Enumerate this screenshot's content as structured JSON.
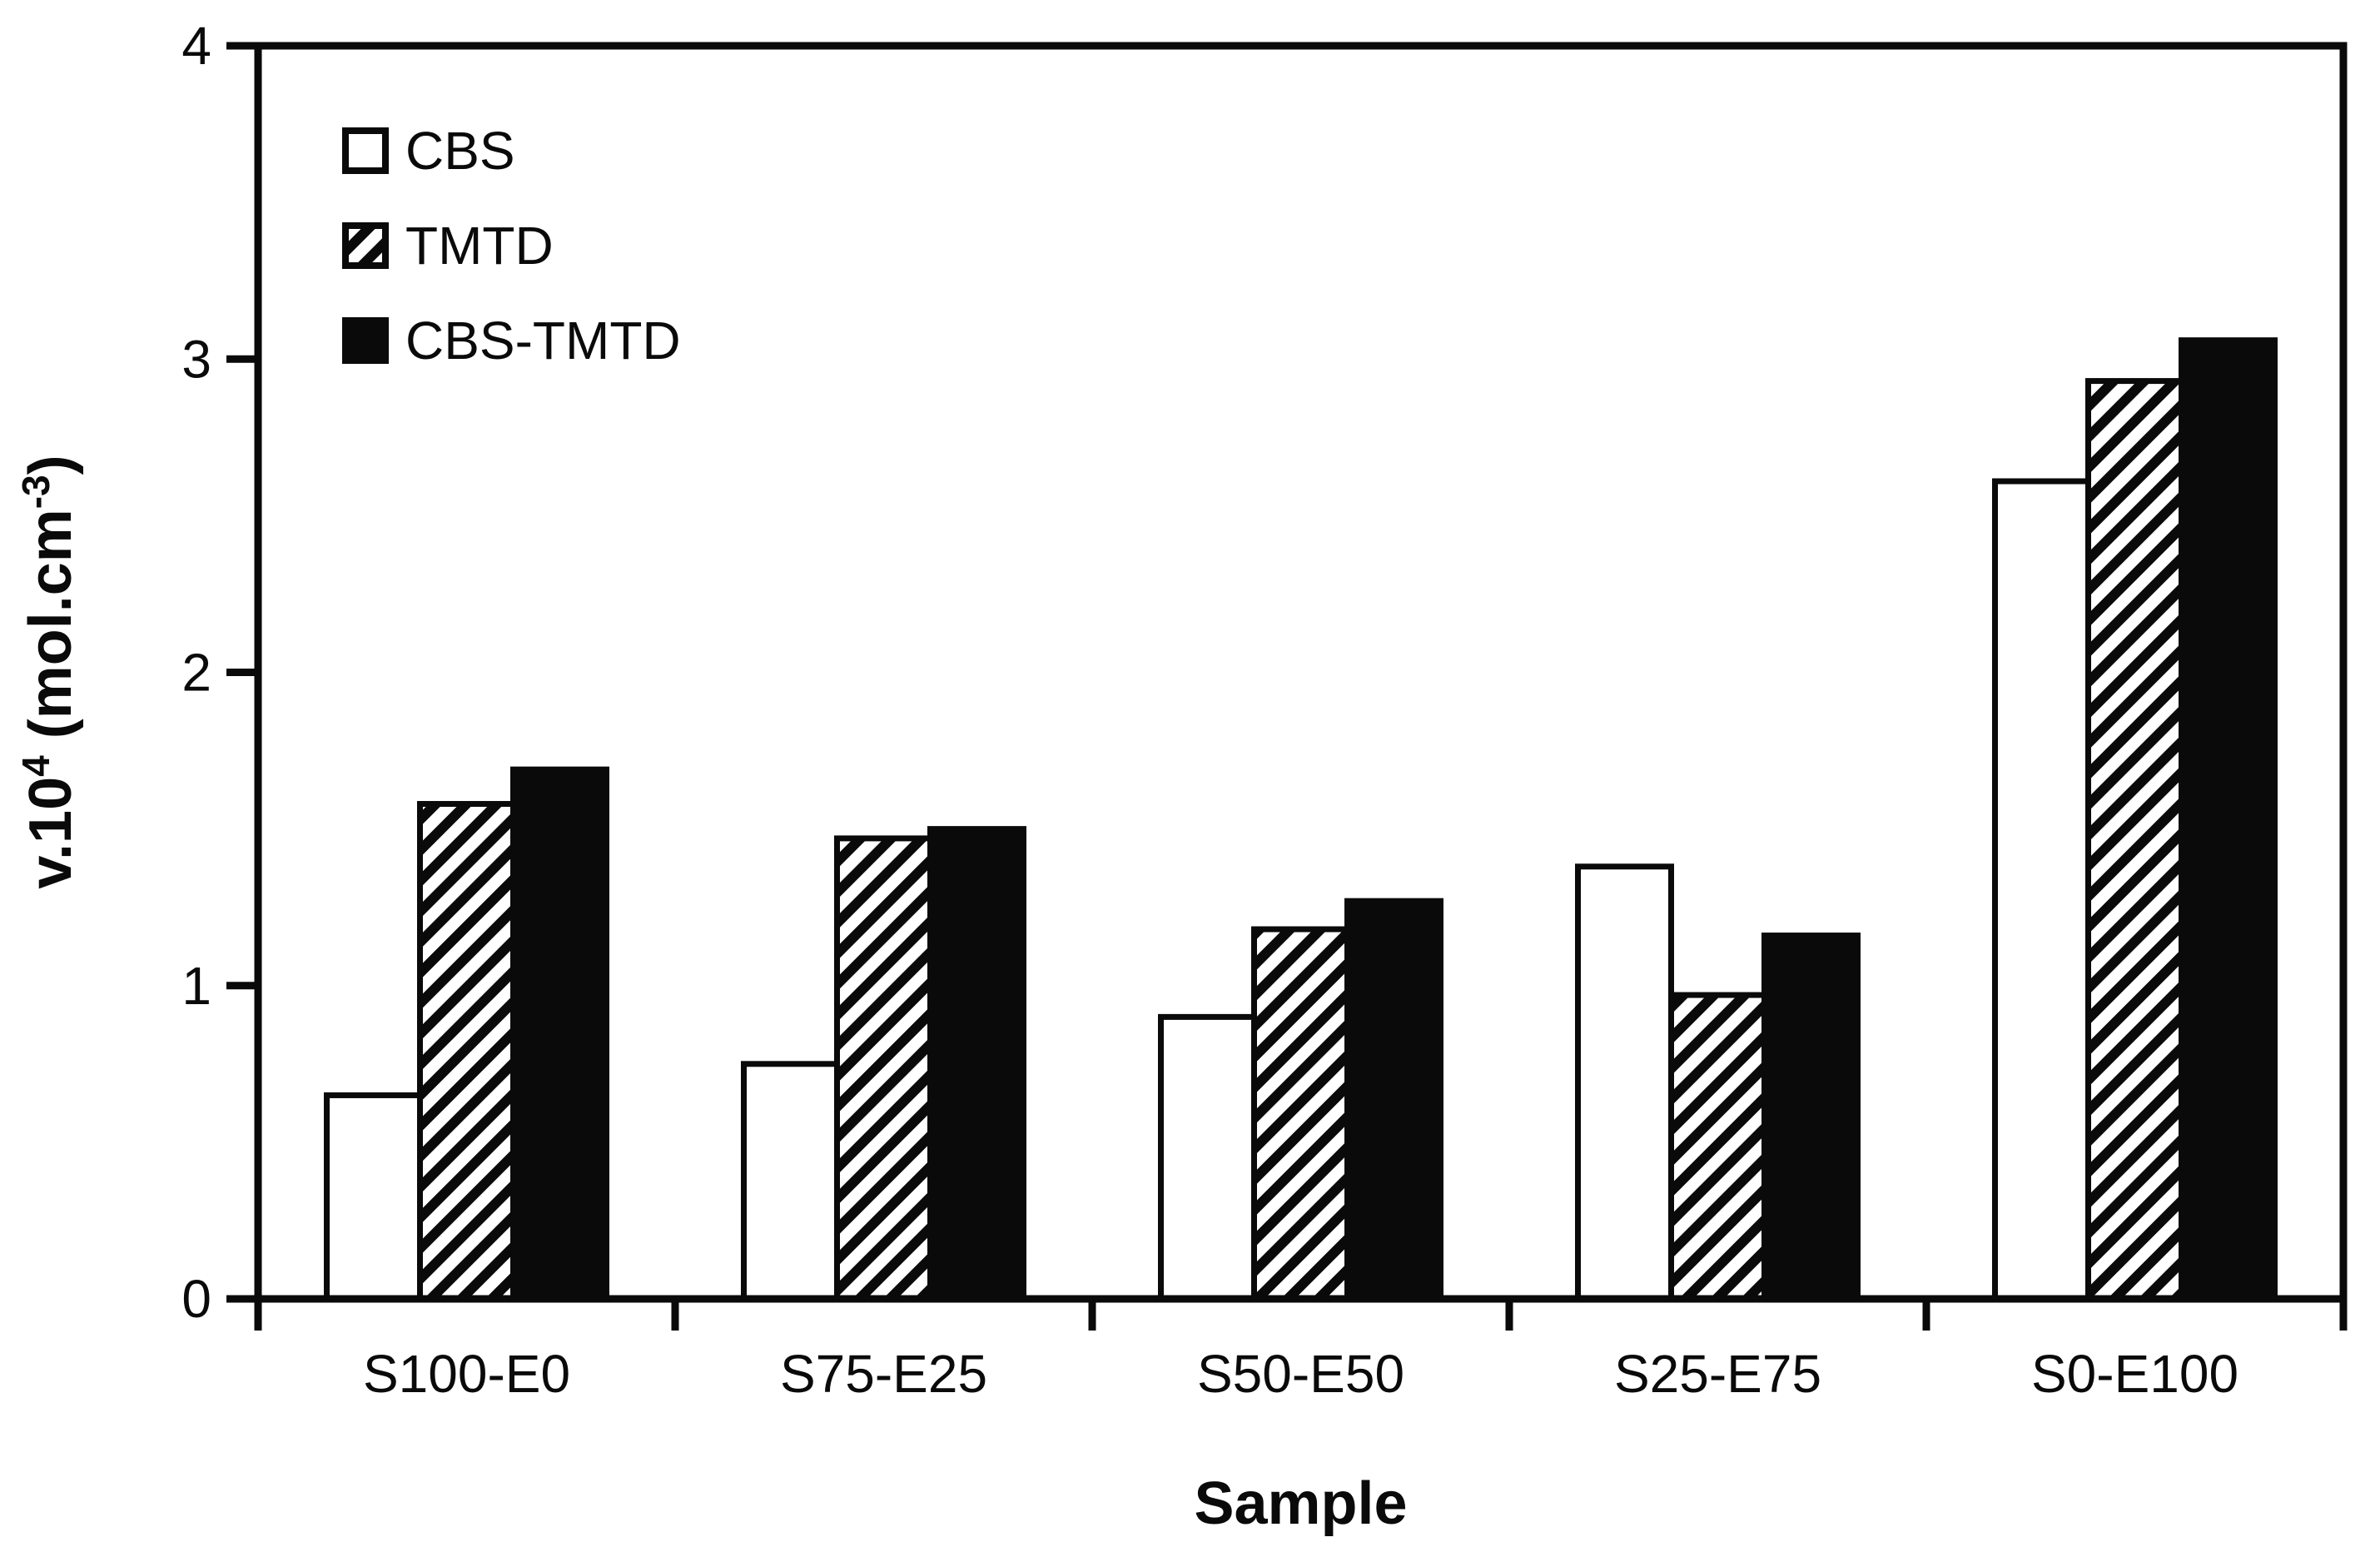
{
  "chart_data": {
    "type": "bar",
    "title": "",
    "categories": [
      "S100-E0",
      "S75-E25",
      "S50-E50",
      "S25-E75",
      "S0-E100"
    ],
    "series": [
      {
        "name": "CBS",
        "style": "white",
        "values": [
          0.65,
          0.75,
          0.9,
          1.38,
          2.61
        ]
      },
      {
        "name": "TMTD",
        "style": "hatch",
        "values": [
          1.58,
          1.47,
          1.18,
          0.97,
          2.93
        ]
      },
      {
        "name": "CBS-TMTD",
        "style": "black",
        "values": [
          1.69,
          1.5,
          1.27,
          1.16,
          3.06
        ]
      }
    ],
    "xlabel": "Sample",
    "ylabel_text": "v.10⁴ (mol.cm⁻³)",
    "ylabel_parts": {
      "pre": "v.10",
      "sup1": "4",
      "mid": " (mol.cm",
      "sup2": "-3",
      "post": ")"
    },
    "y_ticks": [
      "0",
      "1",
      "2",
      "3",
      "4"
    ],
    "ylim": [
      0,
      4
    ],
    "x_tick_count": 6,
    "grid": false,
    "legend_position": "top-left-inside",
    "legend_items": [
      "CBS",
      "TMTD",
      "CBS-TMTD"
    ],
    "colors": {
      "foreground": "#0a0a0a",
      "background": "#ffffff"
    }
  }
}
